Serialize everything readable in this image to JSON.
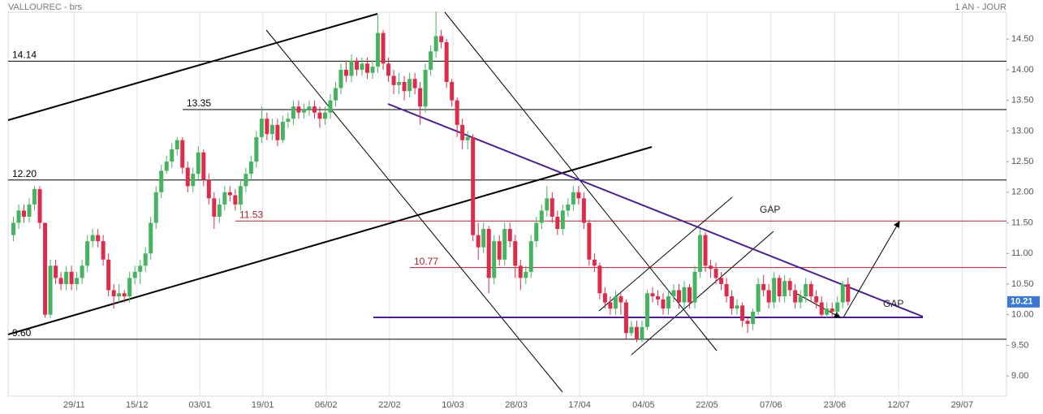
{
  "chart_data": {
    "type": "candlestick",
    "title": "VALLOUREC - brs",
    "subtitle": "1 AN - JOUR",
    "open": [
      11.3,
      11.5,
      11.7,
      11.6,
      11.8,
      12.05,
      11.5,
      10.0,
      10.8,
      10.6,
      10.5,
      10.7,
      10.5,
      10.6,
      10.8,
      11.2,
      11.3,
      11.2,
      10.9,
      10.4,
      10.3,
      10.35,
      10.3,
      10.6,
      10.7,
      10.8,
      11.0,
      11.5,
      12.0,
      12.35,
      12.5,
      12.7,
      12.85,
      12.4,
      12.1,
      12.3,
      12.65,
      12.2,
      11.9,
      11.6,
      11.8,
      12.0,
      11.95,
      11.8,
      12.1,
      12.3,
      12.5,
      12.9,
      13.2,
      12.95,
      13.1,
      12.85,
      13.15,
      13.2,
      13.4,
      13.3,
      13.35,
      13.4,
      13.3,
      13.2,
      13.3,
      13.5,
      13.7,
      14.0,
      13.9,
      14.15,
      14.0,
      14.1,
      13.95,
      14.05,
      14.6,
      14.1,
      13.9,
      13.75,
      13.8,
      13.65,
      13.85,
      13.7,
      13.4,
      14.0,
      14.3,
      14.55,
      14.45,
      13.8,
      13.5,
      13.1,
      12.85,
      12.9,
      11.3,
      11.1,
      11.4,
      10.6,
      11.2,
      10.9,
      11.4,
      11.2,
      10.8,
      10.6,
      10.7,
      11.2,
      11.5,
      11.7,
      11.9,
      11.6,
      11.4,
      11.7,
      11.8,
      12.0,
      11.9,
      11.5,
      10.9,
      10.8,
      10.35,
      10.2,
      10.1,
      10.3,
      10.2,
      9.7,
      9.8,
      9.6,
      9.8,
      10.35,
      10.3,
      10.25,
      10.1,
      10.3,
      10.4,
      10.2,
      10.45,
      10.2,
      10.7,
      11.3,
      10.8,
      10.75,
      10.6,
      10.5,
      10.3,
      10.1,
      10.15,
      9.9,
      9.85,
      10.05,
      10.5,
      10.4,
      10.2,
      10.6,
      10.3,
      10.55,
      10.4,
      10.2,
      10.3,
      10.5,
      10.3,
      10.2,
      10.0,
      10.1,
      10.05,
      10.2,
      10.5
    ],
    "high": [
      11.6,
      11.8,
      11.8,
      11.9,
      12.1,
      12.1,
      11.5,
      10.9,
      10.9,
      10.7,
      10.8,
      10.8,
      10.7,
      10.9,
      11.3,
      11.4,
      11.4,
      11.3,
      11.0,
      10.5,
      10.5,
      10.4,
      10.7,
      10.8,
      10.9,
      11.1,
      11.6,
      12.1,
      12.45,
      12.6,
      12.8,
      12.9,
      12.9,
      12.5,
      12.4,
      12.75,
      12.7,
      12.3,
      12.0,
      11.9,
      12.1,
      12.1,
      12.05,
      12.2,
      12.4,
      12.6,
      13.0,
      13.4,
      13.3,
      13.2,
      13.2,
      13.25,
      13.3,
      13.5,
      13.5,
      13.45,
      13.5,
      13.5,
      13.4,
      13.4,
      13.6,
      13.8,
      14.1,
      14.15,
      14.25,
      14.2,
      14.2,
      14.2,
      14.15,
      14.9,
      14.65,
      14.2,
      14.0,
      13.95,
      13.9,
      13.95,
      13.95,
      13.8,
      14.1,
      14.4,
      14.95,
      14.65,
      14.5,
      13.85,
      13.55,
      13.2,
      13.0,
      12.95,
      11.5,
      11.5,
      11.45,
      11.3,
      11.3,
      11.5,
      11.5,
      11.3,
      10.9,
      10.8,
      11.3,
      11.6,
      11.8,
      12.1,
      12.0,
      11.7,
      11.8,
      11.9,
      12.1,
      12.1,
      12.0,
      11.55,
      11.0,
      10.85,
      10.45,
      10.3,
      10.4,
      10.35,
      10.25,
      9.9,
      9.9,
      9.9,
      10.4,
      10.45,
      10.4,
      10.35,
      10.4,
      10.5,
      10.5,
      10.55,
      10.5,
      10.8,
      11.4,
      11.35,
      10.9,
      10.85,
      10.7,
      10.6,
      10.4,
      10.25,
      10.2,
      9.95,
      10.1,
      10.6,
      10.65,
      10.5,
      10.7,
      10.65,
      10.65,
      10.6,
      10.5,
      10.4,
      10.6,
      10.55,
      10.4,
      10.3,
      10.2,
      10.2,
      10.3,
      10.55,
      10.6
    ],
    "low": [
      11.2,
      11.4,
      11.5,
      11.5,
      11.7,
      11.4,
      9.95,
      9.95,
      10.5,
      10.4,
      10.4,
      10.4,
      10.4,
      10.5,
      10.7,
      11.1,
      11.1,
      10.8,
      10.3,
      10.1,
      10.2,
      10.2,
      10.2,
      10.5,
      10.5,
      10.7,
      10.9,
      11.4,
      11.9,
      12.3,
      12.4,
      12.6,
      12.3,
      12.0,
      12.0,
      12.2,
      12.1,
      11.8,
      11.4,
      11.5,
      11.7,
      11.85,
      11.7,
      11.7,
      12.0,
      12.2,
      12.4,
      12.8,
      12.85,
      12.85,
      12.75,
      12.8,
      13.05,
      13.1,
      13.2,
      13.2,
      13.25,
      13.2,
      13.05,
      13.1,
      13.2,
      13.4,
      13.6,
      13.8,
      13.8,
      13.9,
      13.9,
      13.85,
      13.85,
      13.95,
      14.0,
      13.8,
      13.6,
      13.6,
      13.5,
      13.55,
      13.6,
      13.1,
      13.3,
      13.9,
      14.2,
      14.35,
      13.7,
      13.4,
      12.9,
      12.7,
      12.7,
      11.2,
      10.9,
      11.0,
      10.35,
      10.5,
      10.8,
      10.8,
      11.1,
      10.6,
      10.4,
      10.5,
      10.6,
      11.1,
      11.4,
      11.6,
      11.5,
      11.3,
      11.3,
      11.6,
      11.7,
      11.8,
      11.4,
      10.8,
      10.7,
      10.25,
      10.1,
      10.0,
      10.0,
      10.0,
      9.6,
      9.65,
      9.55,
      9.55,
      9.75,
      10.2,
      10.15,
      10.0,
      10.0,
      10.2,
      10.1,
      10.1,
      10.1,
      10.1,
      10.6,
      10.7,
      10.6,
      10.5,
      10.4,
      10.2,
      10.0,
      10.0,
      9.8,
      9.7,
      9.75,
      10.0,
      10.3,
      10.1,
      10.1,
      10.2,
      10.2,
      10.3,
      10.1,
      10.1,
      10.2,
      10.2,
      10.1,
      9.95,
      9.95,
      9.95,
      10.0,
      10.1,
      10.15
    ],
    "close": [
      11.5,
      11.7,
      11.6,
      11.8,
      12.05,
      11.5,
      10.0,
      10.8,
      10.6,
      10.5,
      10.7,
      10.5,
      10.6,
      10.8,
      11.2,
      11.3,
      11.2,
      10.9,
      10.4,
      10.3,
      10.35,
      10.3,
      10.6,
      10.7,
      10.8,
      11.0,
      11.5,
      12.0,
      12.35,
      12.5,
      12.7,
      12.85,
      12.4,
      12.1,
      12.3,
      12.65,
      12.2,
      11.9,
      11.6,
      11.8,
      12.0,
      11.95,
      11.8,
      12.1,
      12.3,
      12.5,
      12.9,
      13.2,
      12.95,
      13.1,
      12.85,
      13.15,
      13.2,
      13.4,
      13.3,
      13.35,
      13.4,
      13.3,
      13.2,
      13.3,
      13.5,
      13.7,
      14.0,
      13.9,
      14.15,
      14.0,
      14.1,
      13.95,
      14.05,
      14.6,
      14.1,
      13.9,
      13.75,
      13.8,
      13.65,
      13.85,
      13.7,
      13.4,
      14.0,
      14.3,
      14.55,
      14.45,
      13.8,
      13.5,
      13.1,
      12.85,
      12.9,
      11.3,
      11.1,
      11.4,
      10.6,
      11.2,
      10.9,
      11.4,
      11.2,
      10.8,
      10.6,
      10.7,
      11.2,
      11.5,
      11.7,
      11.9,
      11.6,
      11.4,
      11.7,
      11.8,
      12.0,
      11.9,
      11.5,
      10.9,
      10.8,
      10.35,
      10.2,
      10.1,
      10.3,
      10.2,
      9.7,
      9.8,
      9.6,
      9.8,
      10.35,
      10.3,
      10.25,
      10.1,
      10.3,
      10.4,
      10.2,
      10.45,
      10.2,
      10.7,
      11.3,
      10.8,
      10.75,
      10.6,
      10.5,
      10.3,
      10.1,
      10.15,
      9.9,
      9.85,
      10.05,
      10.5,
      10.4,
      10.2,
      10.6,
      10.3,
      10.55,
      10.4,
      10.2,
      10.3,
      10.5,
      10.3,
      10.2,
      10.0,
      10.1,
      10.05,
      10.2,
      10.5,
      10.21
    ],
    "up_color": "#45b35f",
    "down_color": "#dd2c4b",
    "xlim": [
      -1,
      188
    ],
    "xticks": [
      {
        "value": 11.5,
        "label": "29/11"
      },
      {
        "value": 23.4,
        "label": "15/12"
      },
      {
        "value": 35.3,
        "label": "03/01"
      },
      {
        "value": 47.2,
        "label": "19/01"
      },
      {
        "value": 59.2,
        "label": "06/02"
      },
      {
        "value": 71.2,
        "label": "22/02"
      },
      {
        "value": 83.2,
        "label": "10/03"
      },
      {
        "value": 95.2,
        "label": "28/03"
      },
      {
        "value": 107.2,
        "label": "17/04"
      },
      {
        "value": 119.3,
        "label": "04/05"
      },
      {
        "value": 131.3,
        "label": "22/05"
      },
      {
        "value": 143.4,
        "label": "07/06"
      },
      {
        "value": 155.5,
        "label": "23/06"
      },
      {
        "value": 167.6,
        "label": "12/07"
      },
      {
        "value": 179.6,
        "label": "29/07"
      }
    ],
    "ylim": [
      8.67,
      14.94
    ],
    "yticks": [
      {
        "value": 9,
        "label": "9.00"
      },
      {
        "value": 9.5,
        "label": "9.50"
      },
      {
        "value": 10,
        "label": "10.00"
      },
      {
        "value": 10.5,
        "label": "10.50"
      },
      {
        "value": 11,
        "label": "11.00"
      },
      {
        "value": 11.5,
        "label": "11.50"
      },
      {
        "value": 12,
        "label": "12.00"
      },
      {
        "value": 12.5,
        "label": "12.50"
      },
      {
        "value": 13,
        "label": "13.00"
      },
      {
        "value": 13.5,
        "label": "13.50"
      },
      {
        "value": 14,
        "label": "14.00"
      },
      {
        "value": 14.5,
        "label": "14.50"
      }
    ],
    "grid": true,
    "levels": [
      {
        "value": 14.14,
        "color": "#000000"
      },
      {
        "value": 13.35,
        "color": "#000000"
      },
      {
        "value": 12.2,
        "label": "12.20",
        "color": "#000000"
      },
      {
        "value": 11.53,
        "color": "#b0202c"
      },
      {
        "value": 10.77,
        "color": "#b0202c"
      },
      {
        "value": 9.6,
        "label": "9.60",
        "color": "#000000"
      }
    ],
    "annotations": [
      "GAP",
      "GAP"
    ]
  }
}
